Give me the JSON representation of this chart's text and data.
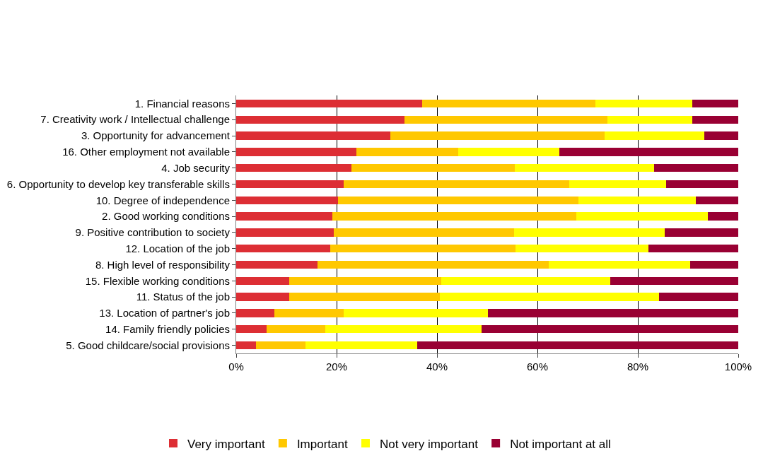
{
  "chart_data": {
    "type": "bar",
    "orientation": "horizontal",
    "stacked": true,
    "categories": [
      "1. Financial reasons",
      "7. Creativity work / Intellectual challenge",
      "3. Opportunity for advancement",
      "16. Other employment not available",
      "4. Job security",
      "6. Opportunity to develop key transferable skills",
      "10. Degree of independence",
      "2. Good working conditions",
      "9. Positive contribution to society",
      "12. Location of the job",
      "8. High level of responsibility",
      "15. Flexible working conditions",
      "11. Status of the job",
      "13. Location of partner's job",
      "14. Family friendly policies",
      "5. Good childcare/social provisions"
    ],
    "series": [
      {
        "name": "Very important",
        "color": "#dd2e34",
        "values": [
          37.1,
          33.5,
          30.7,
          23.9,
          22.9,
          21.4,
          20.3,
          19.2,
          19.4,
          18.7,
          16.2,
          10.6,
          10.6,
          7.6,
          6.0,
          4.0
        ]
      },
      {
        "name": "Important",
        "color": "#ffc800",
        "values": [
          34.4,
          40.4,
          42.7,
          20.3,
          32.6,
          44.9,
          47.9,
          48.6,
          36.0,
          36.9,
          46.0,
          30.2,
          30.0,
          13.8,
          11.7,
          9.8
        ]
      },
      {
        "name": "Not very important",
        "color": "#ffff00",
        "values": [
          19.3,
          16.9,
          19.9,
          20.1,
          27.7,
          19.3,
          23.4,
          26.1,
          29.9,
          26.5,
          28.2,
          33.7,
          43.6,
          28.7,
          31.2,
          22.3
        ]
      },
      {
        "name": "Not important at all",
        "color": "#990033",
        "values": [
          9.2,
          9.2,
          6.7,
          35.7,
          16.8,
          14.4,
          8.4,
          6.1,
          14.7,
          17.9,
          9.6,
          25.5,
          15.8,
          49.9,
          51.1,
          63.9
        ]
      }
    ],
    "xlim": [
      0,
      100
    ],
    "xticks": [
      {
        "value": 0,
        "label": "0%"
      },
      {
        "value": 20,
        "label": "20%"
      },
      {
        "value": 40,
        "label": "40%"
      },
      {
        "value": 60,
        "label": "60%"
      },
      {
        "value": 80,
        "label": "80%"
      },
      {
        "value": 100,
        "label": "100%"
      }
    ],
    "grid": "x",
    "legend": "bottom"
  }
}
